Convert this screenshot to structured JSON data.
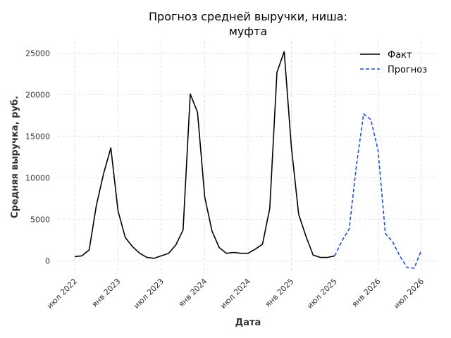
{
  "chart_data": {
    "type": "line",
    "title_lines": [
      "Прогноз средней выручки, ниша:",
      "муфта"
    ],
    "xlabel": "Дата",
    "ylabel": "Средняя выручка, руб.",
    "x_axis": {
      "start": "2022-07",
      "end": "2026-07",
      "ticks": [
        {
          "label": "июл 2022",
          "date": "2022-07"
        },
        {
          "label": "янв 2023",
          "date": "2023-01"
        },
        {
          "label": "июл 2023",
          "date": "2023-07"
        },
        {
          "label": "янв 2024",
          "date": "2024-01"
        },
        {
          "label": "июл 2024",
          "date": "2024-07"
        },
        {
          "label": "янв 2025",
          "date": "2025-01"
        },
        {
          "label": "июл 2025",
          "date": "2025-07"
        },
        {
          "label": "янв 2026",
          "date": "2026-01"
        },
        {
          "label": "июл 2026",
          "date": "2026-07"
        }
      ]
    },
    "y_axis": {
      "ylim": [
        -1500,
        26500
      ],
      "ticks": [
        0,
        5000,
        10000,
        15000,
        20000,
        25000
      ]
    },
    "grid": true,
    "legend_position": "top-right",
    "series": [
      {
        "name": "Факт",
        "color": "#000000",
        "style": "solid",
        "points": [
          {
            "x": "2022-07",
            "y": 500
          },
          {
            "x": "2022-08",
            "y": 600
          },
          {
            "x": "2022-09",
            "y": 1300
          },
          {
            "x": "2022-10",
            "y": 6700
          },
          {
            "x": "2022-11",
            "y": 10500
          },
          {
            "x": "2022-12",
            "y": 13600
          },
          {
            "x": "2023-01",
            "y": 6000
          },
          {
            "x": "2023-02",
            "y": 2800
          },
          {
            "x": "2023-03",
            "y": 1700
          },
          {
            "x": "2023-04",
            "y": 900
          },
          {
            "x": "2023-05",
            "y": 400
          },
          {
            "x": "2023-06",
            "y": 300
          },
          {
            "x": "2023-07",
            "y": 600
          },
          {
            "x": "2023-08",
            "y": 900
          },
          {
            "x": "2023-09",
            "y": 1900
          },
          {
            "x": "2023-10",
            "y": 3700
          },
          {
            "x": "2023-11",
            "y": 20100
          },
          {
            "x": "2023-12",
            "y": 17900
          },
          {
            "x": "2024-01",
            "y": 7700
          },
          {
            "x": "2024-02",
            "y": 3600
          },
          {
            "x": "2024-03",
            "y": 1600
          },
          {
            "x": "2024-04",
            "y": 900
          },
          {
            "x": "2024-05",
            "y": 1000
          },
          {
            "x": "2024-06",
            "y": 900
          },
          {
            "x": "2024-07",
            "y": 900
          },
          {
            "x": "2024-08",
            "y": 1400
          },
          {
            "x": "2024-09",
            "y": 2000
          },
          {
            "x": "2024-10",
            "y": 6300
          },
          {
            "x": "2024-11",
            "y": 22700
          },
          {
            "x": "2024-12",
            "y": 25200
          },
          {
            "x": "2025-01",
            "y": 13700
          },
          {
            "x": "2025-02",
            "y": 5600
          },
          {
            "x": "2025-03",
            "y": 3000
          },
          {
            "x": "2025-04",
            "y": 700
          },
          {
            "x": "2025-05",
            "y": 400
          },
          {
            "x": "2025-06",
            "y": 400
          },
          {
            "x": "2025-07",
            "y": 600
          }
        ]
      },
      {
        "name": "Прогноз",
        "color": "#1f4fd0",
        "style": "dashed",
        "points": [
          {
            "x": "2025-07",
            "y": 600
          },
          {
            "x": "2025-08",
            "y": 2400
          },
          {
            "x": "2025-09",
            "y": 3800
          },
          {
            "x": "2025-10",
            "y": 11500
          },
          {
            "x": "2025-11",
            "y": 17700
          },
          {
            "x": "2025-12",
            "y": 17000
          },
          {
            "x": "2026-01",
            "y": 13300
          },
          {
            "x": "2026-02",
            "y": 3300
          },
          {
            "x": "2026-03",
            "y": 2300
          },
          {
            "x": "2026-04",
            "y": 600
          },
          {
            "x": "2026-05",
            "y": -800
          },
          {
            "x": "2026-06",
            "y": -900
          },
          {
            "x": "2026-07",
            "y": 1300
          }
        ]
      }
    ]
  }
}
